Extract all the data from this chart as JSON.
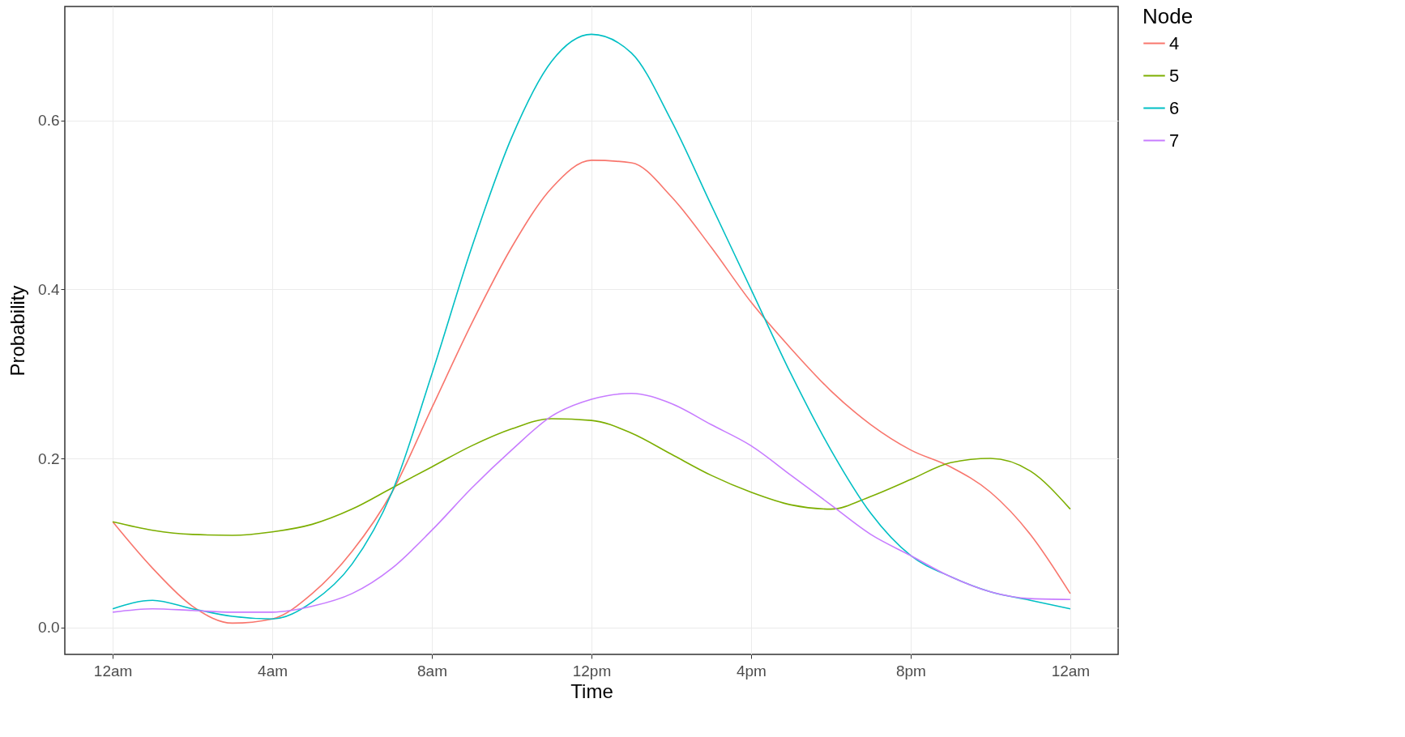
{
  "chart_data": {
    "type": "line",
    "xlabel": "Time",
    "ylabel": "Probability",
    "legend_title": "Node",
    "legend": "right",
    "grid": true,
    "x": [
      "--01-02T00:00",
      "--01-02T01:00",
      "--01-02T02:00",
      "--01-02T03:00",
      "--01-02T04:00",
      "--01-02T05:00",
      "--01-02T06:00",
      "--01-02T07:00",
      "--01-02T08:00",
      "--01-02T09:00",
      "--01-02T10:00",
      "--01-02T11:00",
      "--01-02T12:00",
      "--01-02T13:00",
      "--01-02T14:00",
      "--01-02T15:00",
      "--01-02T16:00",
      "--01-02T17:00",
      "--01-02T18:00",
      "--01-02T19:00",
      "--01-02T20:00",
      "--01-02T21:00",
      "--01-02T22:00",
      "--01-02T23:00",
      "--01-03T00:00"
    ],
    "xlim": [
      "--01-01T22:48",
      "--01-03T01:12"
    ],
    "xticks": [
      {
        "value": "--01-02T00:00",
        "label": "12am"
      },
      {
        "value": "--01-02T04:00",
        "label": "4am"
      },
      {
        "value": "--01-02T08:00",
        "label": "8am"
      },
      {
        "value": "--01-02T12:00",
        "label": "12pm"
      },
      {
        "value": "--01-02T16:00",
        "label": "4pm"
      },
      {
        "value": "--01-02T20:00",
        "label": "8pm"
      },
      {
        "value": "--01-03T00:00",
        "label": "12am"
      }
    ],
    "ylim": [
      -0.032,
      0.735
    ],
    "yticks": [
      {
        "value": 0,
        "label": "0.0"
      },
      {
        "value": 0.2,
        "label": "0.2"
      },
      {
        "value": 0.4,
        "label": "0.4"
      },
      {
        "value": 0.6,
        "label": "0.6"
      }
    ],
    "series": [
      {
        "name": "4",
        "color": "#f8766d",
        "values": [
          0.125,
          0.07,
          0.025,
          0.005,
          0.01,
          0.04,
          0.09,
          0.16,
          0.26,
          0.36,
          0.45,
          0.52,
          0.553,
          0.55,
          0.51,
          0.45,
          0.385,
          0.33,
          0.28,
          0.24,
          0.21,
          0.19,
          0.16,
          0.11,
          0.04
        ]
      },
      {
        "name": "5",
        "color": "#7cae00",
        "values": [
          0.125,
          0.115,
          0.11,
          0.109,
          0.113,
          0.122,
          0.14,
          0.165,
          0.19,
          0.215,
          0.235,
          0.247,
          0.245,
          0.23,
          0.205,
          0.18,
          0.16,
          0.145,
          0.14,
          0.155,
          0.175,
          0.195,
          0.2,
          0.185,
          0.14
        ]
      },
      {
        "name": "6",
        "color": "#00bfc4",
        "values": [
          0.022,
          0.032,
          0.022,
          0.013,
          0.01,
          0.03,
          0.075,
          0.16,
          0.3,
          0.45,
          0.58,
          0.67,
          0.702,
          0.68,
          0.6,
          0.5,
          0.4,
          0.3,
          0.21,
          0.135,
          0.085,
          0.06,
          0.042,
          0.032,
          0.022
        ]
      },
      {
        "name": "7",
        "color": "#c77cff",
        "values": [
          0.018,
          0.022,
          0.02,
          0.018,
          0.018,
          0.025,
          0.04,
          0.07,
          0.115,
          0.165,
          0.21,
          0.25,
          0.27,
          0.277,
          0.265,
          0.24,
          0.215,
          0.18,
          0.145,
          0.11,
          0.085,
          0.06,
          0.042,
          0.034,
          0.033
        ]
      }
    ]
  }
}
